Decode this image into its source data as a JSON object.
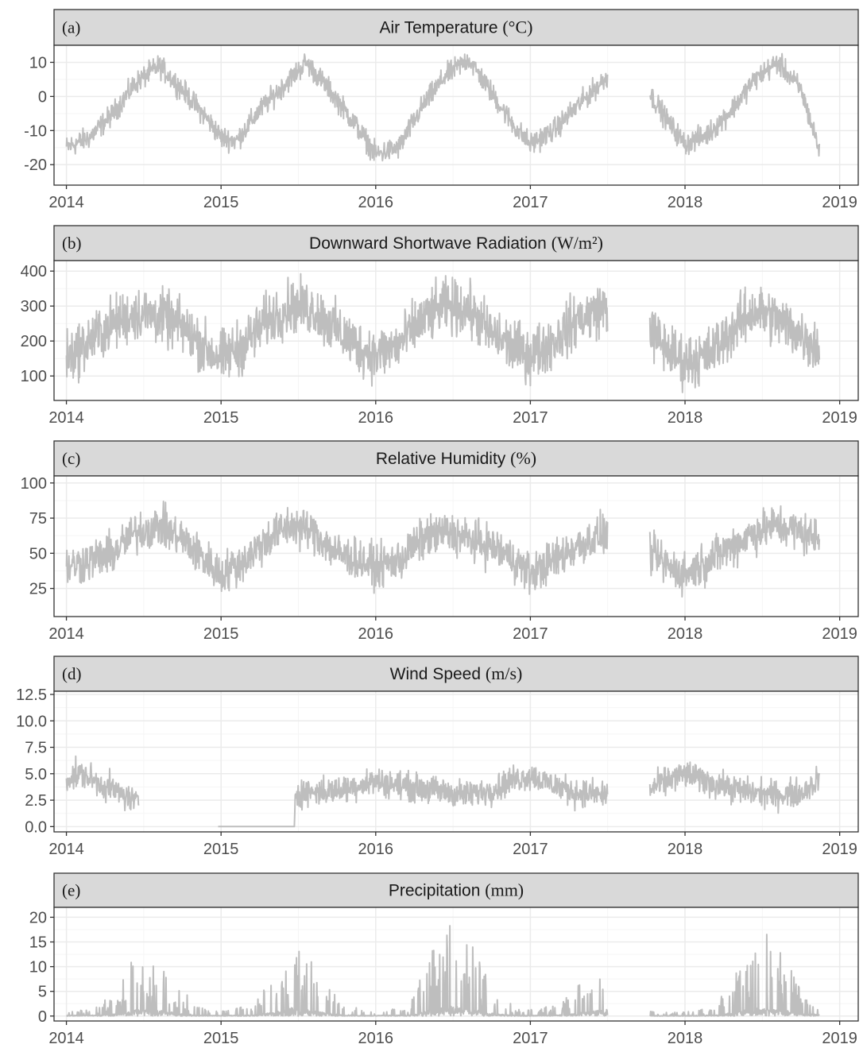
{
  "figure": {
    "x_ticks": [
      "2014",
      "2015",
      "2016",
      "2017",
      "2018",
      "2019"
    ],
    "colors": {
      "line": "#bebebe",
      "strip_fill": "#d9d9d9",
      "frame": "#333333",
      "grid_major": "#ebebeb",
      "grid_minor": "#f5f5f5",
      "tick_text": "#4d4d4d"
    }
  },
  "chart_data": [
    {
      "type": "line",
      "tag": "(a)",
      "title": "Air Temperature",
      "unit": "(°C)",
      "xlim": [
        2013.92,
        2019.12
      ],
      "ylim": [
        -26,
        15
      ],
      "y_ticks": [
        10,
        0,
        -10,
        -20
      ],
      "y_tick_labels": [
        "10",
        "0",
        "-10",
        "-20"
      ],
      "gaps": [
        [
          2017.5,
          2017.77
        ]
      ],
      "series": [
        {
          "x": [
            2014.0,
            2014.15,
            2014.3,
            2014.45,
            2014.6,
            2014.75,
            2014.9,
            2015.0,
            2015.1,
            2015.25,
            2015.4,
            2015.55,
            2015.7,
            2015.85,
            2016.0,
            2016.15,
            2016.3,
            2016.45,
            2016.6,
            2016.75,
            2016.9,
            2017.0,
            2017.15,
            2017.3,
            2017.5,
            2017.77,
            2017.9,
            2018.0,
            2018.15,
            2018.3,
            2018.45,
            2018.6,
            2018.75,
            2018.87
          ],
          "y": [
            -15,
            -12,
            -5,
            4,
            9,
            2,
            -6,
            -12,
            -13,
            -4,
            3,
            10,
            2,
            -7,
            -17,
            -15,
            -3,
            6,
            11,
            1,
            -9,
            -14,
            -10,
            -3,
            6,
            1,
            -8,
            -14,
            -11,
            -4,
            5,
            10,
            2,
            -16
          ]
        }
      ]
    },
    {
      "type": "line",
      "tag": "(b)",
      "title": "Downward Shortwave Radiation",
      "unit": "(W/m²)",
      "xlim": [
        2013.92,
        2019.12
      ],
      "ylim": [
        30,
        430
      ],
      "y_ticks": [
        400,
        300,
        200,
        100
      ],
      "y_tick_labels": [
        "400",
        "300",
        "200",
        "100"
      ],
      "gaps": [
        [
          2017.5,
          2017.77
        ]
      ],
      "series": [
        {
          "x": [
            2014.0,
            2014.15,
            2014.3,
            2014.45,
            2014.6,
            2014.75,
            2014.9,
            2015.0,
            2015.15,
            2015.3,
            2015.45,
            2015.6,
            2015.75,
            2015.9,
            2016.0,
            2016.15,
            2016.3,
            2016.45,
            2016.6,
            2016.75,
            2016.9,
            2017.0,
            2017.15,
            2017.3,
            2017.5,
            2017.77,
            2017.9,
            2018.0,
            2018.15,
            2018.3,
            2018.45,
            2018.6,
            2018.75,
            2018.87
          ],
          "y": [
            150,
            200,
            250,
            280,
            270,
            240,
            180,
            150,
            190,
            260,
            300,
            290,
            230,
            180,
            160,
            190,
            260,
            300,
            290,
            220,
            180,
            160,
            200,
            260,
            300,
            230,
            170,
            140,
            160,
            230,
            290,
            260,
            220,
            180
          ]
        }
      ]
    },
    {
      "type": "line",
      "tag": "(c)",
      "title": "Relative Humidity",
      "unit": "(%)",
      "xlim": [
        2013.92,
        2019.12
      ],
      "ylim": [
        5,
        105
      ],
      "y_ticks": [
        100,
        75,
        50,
        25
      ],
      "y_tick_labels": [
        "100",
        "75",
        "50",
        "25"
      ],
      "gaps": [
        [
          2017.5,
          2017.77
        ]
      ],
      "series": [
        {
          "x": [
            2014.0,
            2014.15,
            2014.3,
            2014.45,
            2014.6,
            2014.75,
            2014.9,
            2015.0,
            2015.15,
            2015.3,
            2015.45,
            2015.6,
            2015.75,
            2015.9,
            2016.0,
            2016.15,
            2016.3,
            2016.45,
            2016.6,
            2016.75,
            2016.9,
            2017.0,
            2017.15,
            2017.3,
            2017.5,
            2017.77,
            2017.9,
            2018.0,
            2018.15,
            2018.3,
            2018.45,
            2018.6,
            2018.75,
            2018.87
          ],
          "y": [
            40,
            45,
            50,
            65,
            70,
            60,
            45,
            35,
            45,
            60,
            70,
            65,
            50,
            45,
            40,
            45,
            60,
            65,
            60,
            55,
            45,
            35,
            45,
            55,
            65,
            50,
            40,
            35,
            45,
            55,
            65,
            70,
            65,
            60
          ]
        }
      ]
    },
    {
      "type": "line",
      "tag": "(d)",
      "title": "Wind Speed",
      "unit": "(m/s)",
      "xlim": [
        2013.92,
        2019.12
      ],
      "ylim": [
        -0.5,
        12.8
      ],
      "y_ticks": [
        12.5,
        10.0,
        7.5,
        5.0,
        2.5,
        0.0
      ],
      "y_tick_labels": [
        "12.5",
        "10.0",
        "7.5",
        "5.0",
        "2.5",
        "0.0"
      ],
      "gaps": [
        [
          2014.47,
          2014.98
        ],
        [
          2017.5,
          2017.77
        ]
      ],
      "series": [
        {
          "x": [
            2014.0,
            2014.1,
            2014.2,
            2014.3,
            2014.47,
            2014.98,
            2015.47,
            2015.48,
            2015.6,
            2015.75,
            2015.9,
            2016.0,
            2016.2,
            2016.4,
            2016.6,
            2016.75,
            2016.9,
            2017.0,
            2017.1,
            2017.3,
            2017.5,
            2017.77,
            2017.9,
            2018.0,
            2018.2,
            2018.4,
            2018.6,
            2018.75,
            2018.87
          ],
          "y": [
            4.5,
            5.0,
            4.2,
            3.5,
            2.2,
            0.0,
            0.0,
            3.2,
            3.3,
            3.4,
            4.0,
            4.3,
            3.8,
            3.4,
            3.0,
            3.5,
            4.5,
            4.8,
            4.2,
            3.2,
            3.0,
            3.5,
            4.5,
            5.0,
            4.0,
            3.3,
            3.0,
            3.2,
            4.5
          ]
        }
      ]
    },
    {
      "type": "line",
      "tag": "(e)",
      "title": "Precipitation",
      "unit": "(mm)",
      "xlim": [
        2013.92,
        2019.12
      ],
      "ylim": [
        -1,
        22
      ],
      "y_ticks": [
        20,
        15,
        10,
        5,
        0
      ],
      "y_tick_labels": [
        "20",
        "15",
        "10",
        "5",
        "0"
      ],
      "gaps": [
        [
          2017.5,
          2017.77
        ]
      ],
      "series": [
        {
          "x": [
            2014.0,
            2014.2,
            2014.35,
            2014.5,
            2014.6,
            2014.75,
            2014.9,
            2015.0,
            2015.2,
            2015.35,
            2015.45,
            2015.6,
            2015.75,
            2015.9,
            2016.0,
            2016.2,
            2016.35,
            2016.5,
            2016.6,
            2016.75,
            2016.9,
            2017.0,
            2017.2,
            2017.35,
            2017.5,
            2017.77,
            2017.9,
            2018.0,
            2018.2,
            2018.35,
            2018.5,
            2018.6,
            2018.75,
            2018.87
          ],
          "y": [
            0.3,
            0.5,
            1.5,
            4.0,
            3.0,
            1.2,
            0.3,
            0.3,
            0.5,
            2.0,
            4.5,
            2.5,
            1.0,
            0.3,
            0.3,
            0.5,
            3.0,
            5.0,
            4.0,
            1.5,
            0.4,
            0.3,
            0.6,
            2.0,
            3.5,
            0.3,
            0.2,
            0.2,
            0.5,
            2.5,
            4.5,
            3.5,
            1.5,
            0.8
          ]
        }
      ]
    }
  ]
}
